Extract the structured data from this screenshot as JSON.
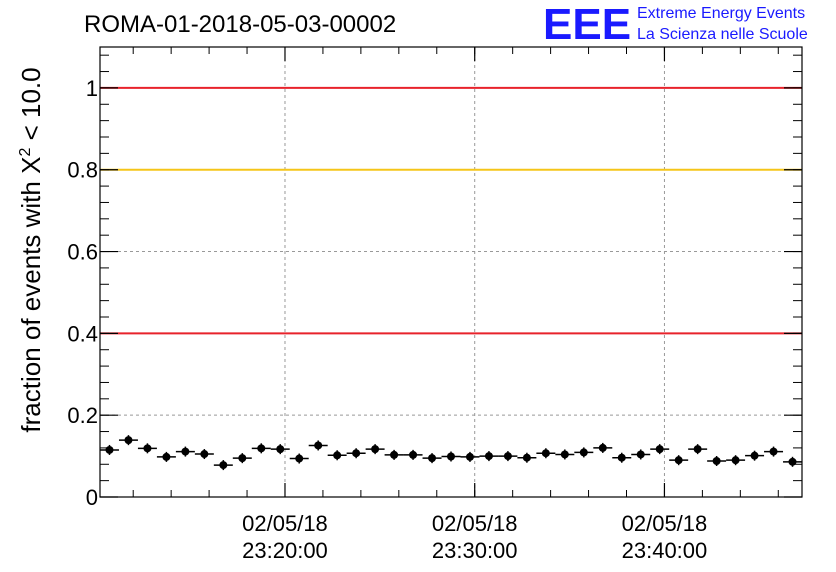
{
  "chart_data": {
    "type": "scatter",
    "title": "ROMA-01-2018-05-03-00002",
    "ylabel": "fraction of events with",
    "ylabel_symbol": "X",
    "ylabel_sup": "2",
    "ylabel_tail": " < 10.0",
    "xlabel": "",
    "ylim": [
      0,
      1.1
    ],
    "yticks": [
      {
        "value": 0,
        "label": "0"
      },
      {
        "value": 0.2,
        "label": "0.2"
      },
      {
        "value": 0.4,
        "label": "0.4"
      },
      {
        "value": 0.6,
        "label": "0.6"
      },
      {
        "value": 0.8,
        "label": "0.8"
      },
      {
        "value": 1,
        "label": "1"
      }
    ],
    "xlim": [
      "2018-05-02 23:10:15",
      "2018-05-02 23:47:15"
    ],
    "xticks": [
      {
        "value": "2018-05-02 23:20:00",
        "date": "02/05/18",
        "time": "23:20:00"
      },
      {
        "value": "2018-05-02 23:30:00",
        "date": "02/05/18",
        "time": "23:30:00"
      },
      {
        "value": "2018-05-02 23:40:00",
        "date": "02/05/18",
        "time": "23:40:00"
      }
    ],
    "grid": true,
    "reference_lines": [
      {
        "y": 1.0,
        "color": "#e8232b"
      },
      {
        "y": 0.8,
        "color": "#f5c518"
      },
      {
        "y": 0.4,
        "color": "#e8232b"
      }
    ],
    "x": [
      "2018-05-02 23:10:45",
      "2018-05-02 23:11:45",
      "2018-05-02 23:12:45",
      "2018-05-02 23:13:45",
      "2018-05-02 23:14:45",
      "2018-05-02 23:15:45",
      "2018-05-02 23:16:45",
      "2018-05-02 23:17:45",
      "2018-05-02 23:18:45",
      "2018-05-02 23:19:45",
      "2018-05-02 23:20:45",
      "2018-05-02 23:21:45",
      "2018-05-02 23:22:45",
      "2018-05-02 23:23:45",
      "2018-05-02 23:24:45",
      "2018-05-02 23:25:45",
      "2018-05-02 23:26:45",
      "2018-05-02 23:27:45",
      "2018-05-02 23:28:45",
      "2018-05-02 23:29:45",
      "2018-05-02 23:30:45",
      "2018-05-02 23:31:45",
      "2018-05-02 23:32:45",
      "2018-05-02 23:33:45",
      "2018-05-02 23:34:45",
      "2018-05-02 23:35:45",
      "2018-05-02 23:36:45",
      "2018-05-02 23:37:45",
      "2018-05-02 23:38:45",
      "2018-05-02 23:39:45",
      "2018-05-02 23:40:45",
      "2018-05-02 23:41:45",
      "2018-05-02 23:42:45",
      "2018-05-02 23:43:45",
      "2018-05-02 23:44:45",
      "2018-05-02 23:45:45",
      "2018-05-02 23:46:45"
    ],
    "values": [
      0.115,
      0.139,
      0.119,
      0.098,
      0.111,
      0.105,
      0.078,
      0.095,
      0.119,
      0.117,
      0.094,
      0.126,
      0.102,
      0.107,
      0.117,
      0.103,
      0.103,
      0.095,
      0.099,
      0.098,
      0.1,
      0.1,
      0.096,
      0.107,
      0.104,
      0.109,
      0.12,
      0.096,
      0.104,
      0.117,
      0.09,
      0.117,
      0.088,
      0.09,
      0.101,
      0.111,
      0.086
    ],
    "marker_color": "#000000"
  },
  "logo": {
    "mark": "EEE",
    "line1": "Extreme Energy Events",
    "line2": "La Scienza nelle Scuole",
    "color": "#1a1aff"
  }
}
